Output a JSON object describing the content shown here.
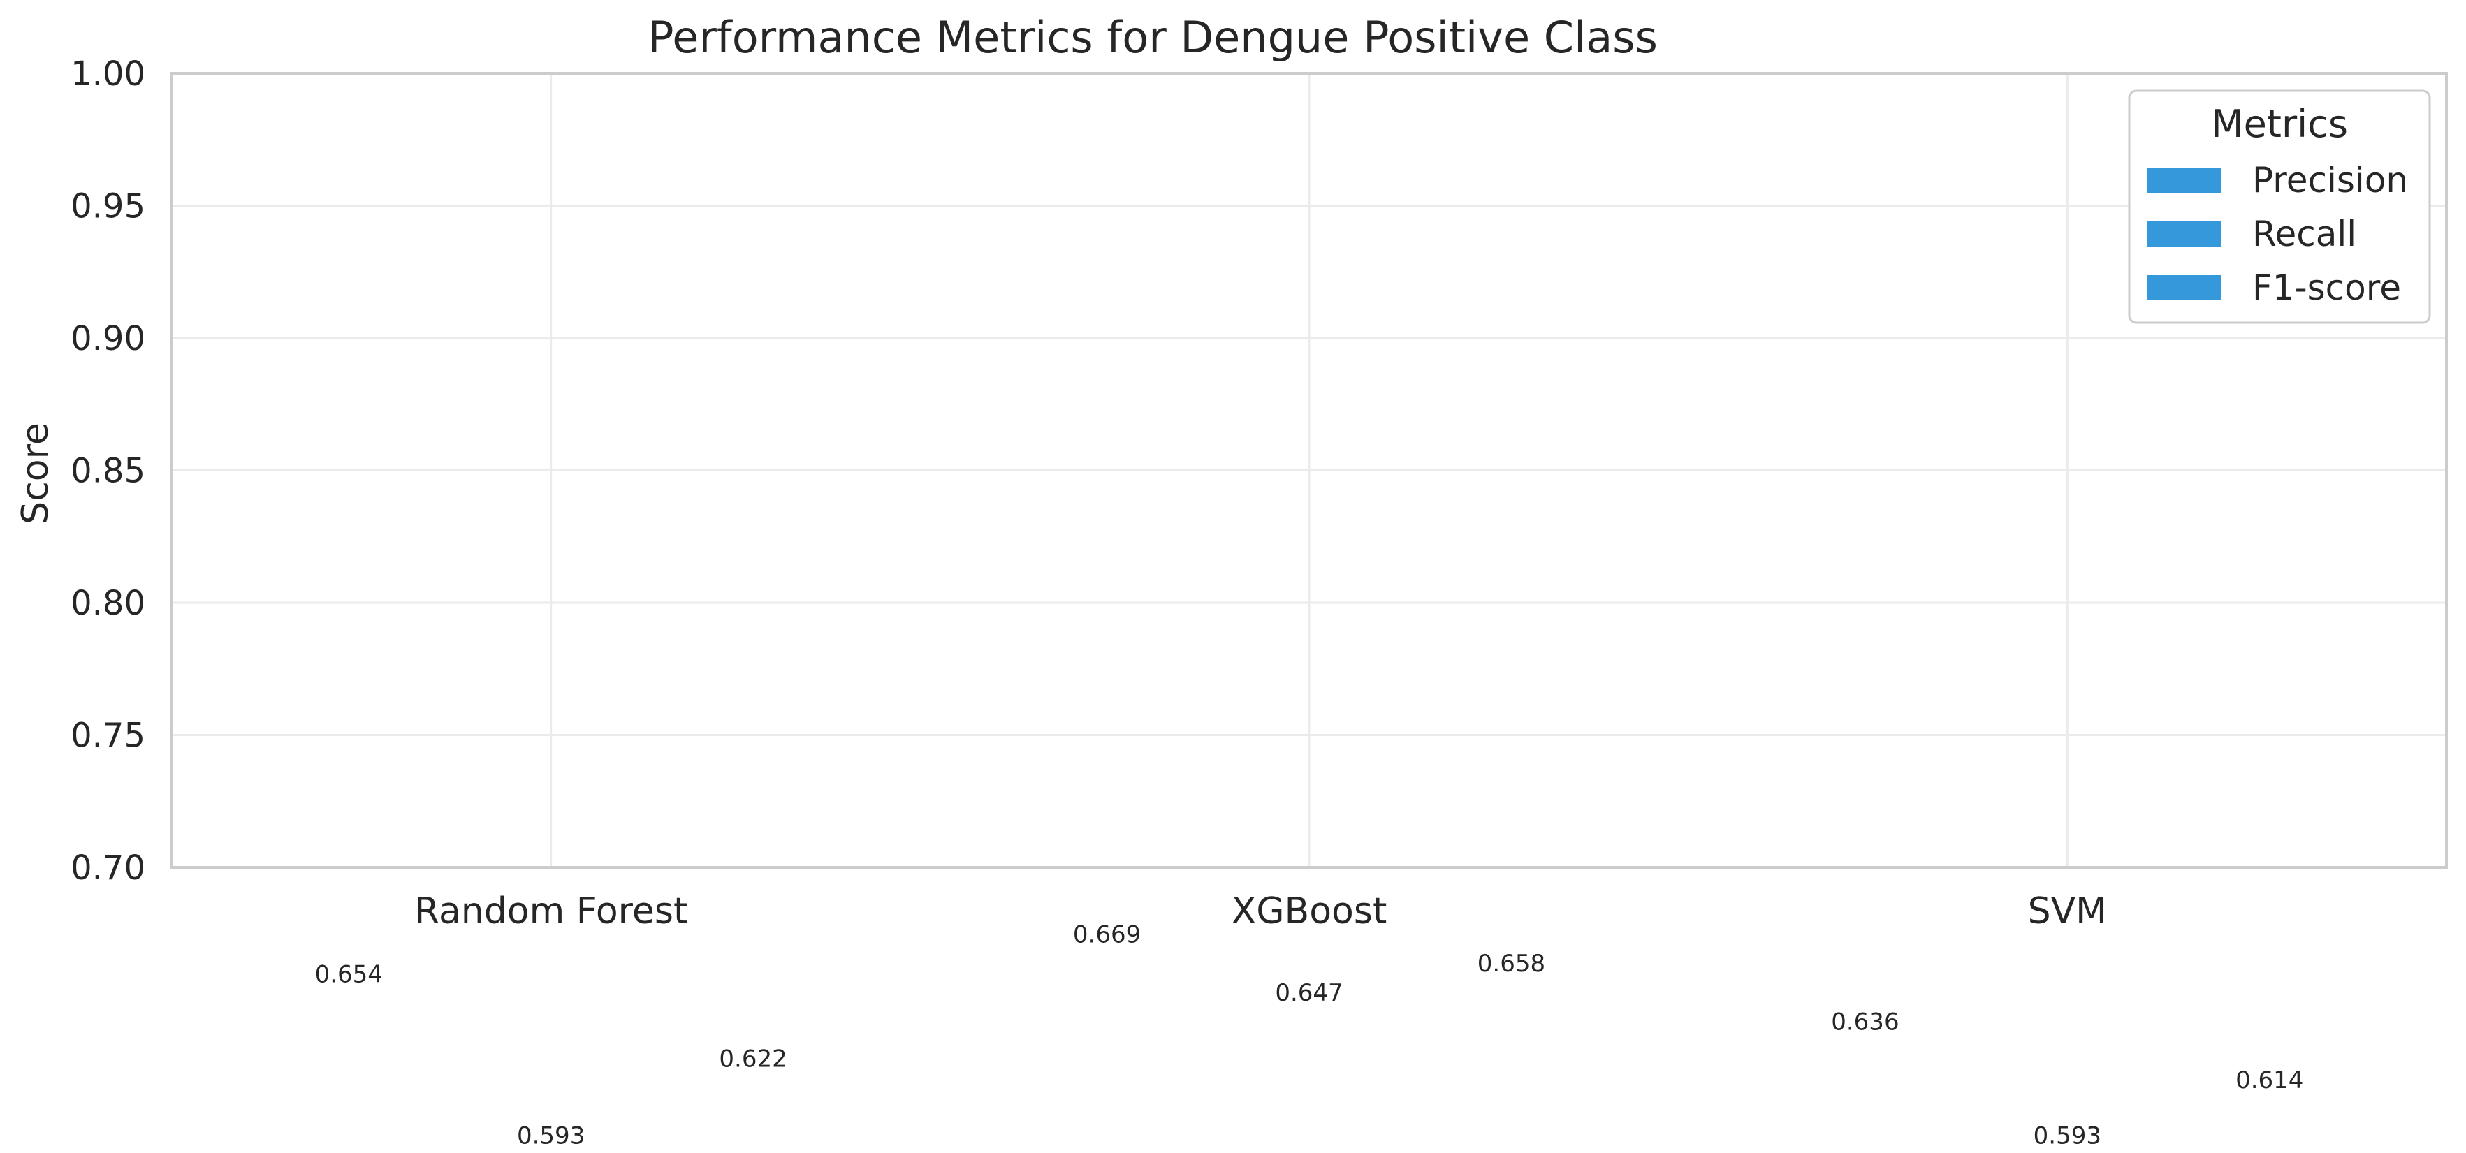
{
  "chart_data": {
    "type": "bar",
    "title": "Performance Metrics for Dengue Positive Class",
    "xlabel": "",
    "ylabel": "Score",
    "categories": [
      "Random Forest",
      "XGBoost",
      "SVM"
    ],
    "series": [
      {
        "name": "Precision",
        "values": [
          0.654,
          0.669,
          0.636
        ]
      },
      {
        "name": "Recall",
        "values": [
          0.593,
          0.647,
          0.593
        ]
      },
      {
        "name": "F1-score",
        "values": [
          0.622,
          0.658,
          0.614
        ]
      }
    ],
    "ylim": [
      0.7,
      1.0
    ],
    "yticks": [
      "0.70",
      "0.75",
      "0.80",
      "0.85",
      "0.90",
      "0.95",
      "1.00"
    ],
    "grid": true,
    "legend": {
      "title": "Metrics",
      "placement": "top-right"
    },
    "colors": {
      "bar": "#3498db",
      "grid": "#ebebeb",
      "spine": "#cccccc",
      "text": "#262626"
    }
  }
}
